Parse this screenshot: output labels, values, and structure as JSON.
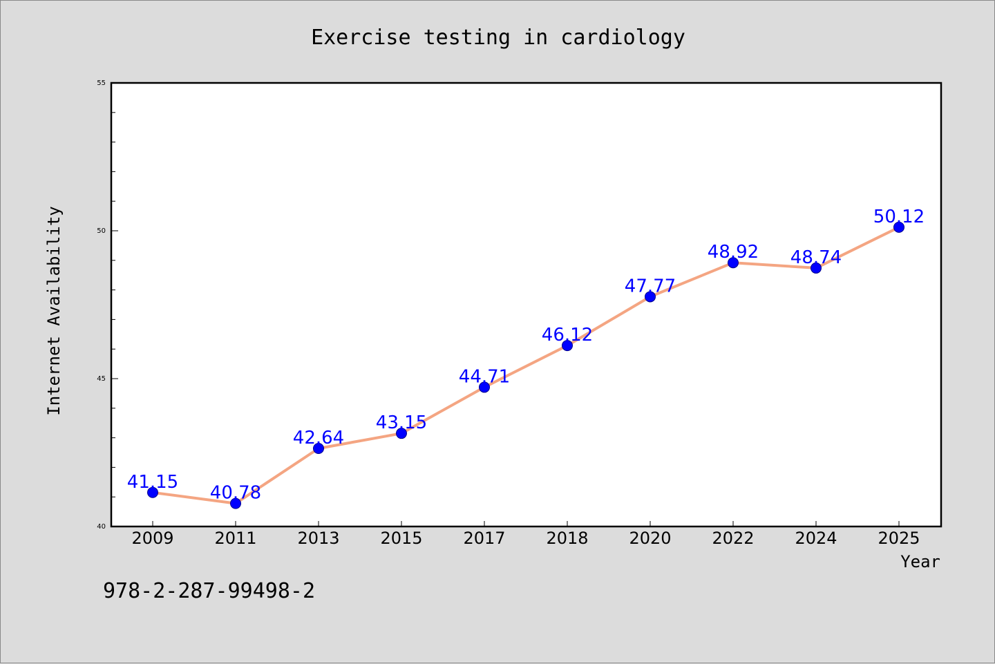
{
  "footer_id": "978-2-287-99498-2",
  "colors": {
    "background": "#dcdcdc",
    "plot_background": "#ffffff",
    "line": "#f4a582",
    "marker": "#0000ff",
    "marker_edge": "#00008b",
    "data_label": "#0000ff"
  },
  "chart_data": {
    "type": "line",
    "title": "Exercise testing in cardiology",
    "xlabel": "Year",
    "ylabel": "Internet Availability",
    "categories": [
      "2009",
      "2011",
      "2013",
      "2015",
      "2017",
      "2018",
      "2020",
      "2022",
      "2024",
      "2025"
    ],
    "series": [
      {
        "values": [
          41.15,
          40.78,
          42.64,
          43.15,
          44.71,
          46.12,
          47.77,
          48.92,
          48.74,
          50.12
        ],
        "data_labels": [
          "41.15",
          "40.78",
          "42.64",
          "43.15",
          "44.71",
          "46.12",
          "47.77",
          "48.92",
          "48.74",
          "50.12"
        ]
      }
    ],
    "ylim": [
      40,
      55
    ],
    "yticks": [
      40,
      45,
      50,
      55
    ],
    "ytick_labels": [
      "40",
      "45",
      "50",
      "55"
    ],
    "grid": false,
    "legend": "none"
  }
}
